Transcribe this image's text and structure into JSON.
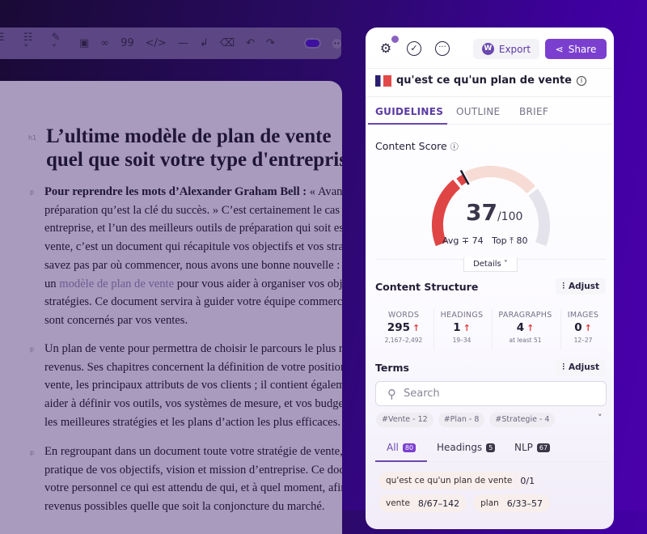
{
  "toolbar": {
    "icons": [
      "align-icon",
      "list-icon",
      "brush-icon",
      "image-icon",
      "link-icon",
      "quote-icon",
      "code-icon",
      "divider-icon",
      "enter-icon",
      "eraser-icon",
      "undo-icon",
      "redo-icon",
      "toggle",
      "more-icon"
    ]
  },
  "editor": {
    "h1_label": "h1",
    "p_label": "p",
    "heading": [
      "L’ultime modèle de plan de vente",
      "quel que soit votre type d'entreprise"
    ],
    "p1": {
      "bold": "Pour reprendre les mots d’Alexander Graham Bell :",
      "l1rest": " « Avant tout, c’est la",
      "l2": "préparation qu’est la clé du succès. » C’est certainement le cas pour votre",
      "l3": "entreprise, et l’un des meilleurs outils de préparation qui soit est le plan de",
      "l4": "vente, c’est un document qui récapitule vos objectifs et vos stratégies. Si vous ne",
      "l5": "savez pas par où commencer, nous avons une bonne nouvelle : nous avons créé",
      "l6pre": "un ",
      "link": "modèle de plan de vente",
      "l6post": " pour vous aider à organiser vos objectifs et",
      "l7": "stratégies. Ce document servira à guider votre équipe commerciale et tous ceux qui",
      "l8": "sont concernés par vos ventes."
    },
    "p2": [
      "Un plan de vente pour permettra de choisir le parcours le plus rapide vers vos",
      "revenus. Ses chapitres concernent la définition de votre position sur le marché de",
      "vente, les principaux attributs de vos clients ; il contient également de quoi vous",
      "aider à définir vos outils, vos systèmes de mesure, et vos budgets pour mettre en place",
      "les meilleures stratégies et les plans d’action les plus efficaces."
    ],
    "p3": [
      "En regroupant dans un document toute votre stratégie de vente, vous avez une vue",
      "pratique de vos objectifs, vision et mission d’entreprise. Ce document indique à",
      "votre personnel ce qui est attendu de qui, et à quel moment, afin de générer les",
      "revenus possibles quelle que soit la conjoncture du marché."
    ]
  },
  "panel": {
    "export_label": "Export",
    "share_label": "Share",
    "keyword": "qu'est ce qu'un plan de vente",
    "tabs": [
      "GUIDELINES",
      "OUTLINE",
      "BRIEF"
    ],
    "content_score": {
      "title": "Content Score",
      "score": "37",
      "max": "/100",
      "value": 37,
      "avg_label": "Avg",
      "avg": "74",
      "top_label": "Top",
      "top": "80",
      "details": "Details"
    },
    "structure": {
      "title": "Content Structure",
      "adjust": "Adjust",
      "stats": [
        {
          "key": "WORDS",
          "value": "295",
          "range": "2,167–2,492"
        },
        {
          "key": "HEADINGS",
          "value": "1",
          "range": "19–34"
        },
        {
          "key": "PARAGRAPHS",
          "value": "4",
          "range": "at least 51"
        },
        {
          "key": "IMAGES",
          "value": "0",
          "range": "12–27"
        }
      ]
    },
    "terms": {
      "title": "Terms",
      "adjust": "Adjust",
      "search_placeholder": "Search",
      "chips": [
        "#Vente - 12",
        "#Plan - 8",
        "#Strategie - 4"
      ],
      "tabs": [
        {
          "label": "All",
          "count": "80"
        },
        {
          "label": "Headings",
          "count": "5"
        },
        {
          "label": "NLP",
          "count": "67"
        }
      ],
      "items": [
        {
          "term": "qu'est ce qu'un plan de vente",
          "count": "0/1"
        },
        {
          "term": "vente",
          "count": "8/67–142"
        },
        {
          "term": "plan",
          "count": "6/33–57"
        }
      ]
    }
  },
  "colors": {
    "accent": "#7b3fd0",
    "low": "#e04545",
    "mid": "#f6dcd4",
    "high": "#e4e2ea"
  }
}
